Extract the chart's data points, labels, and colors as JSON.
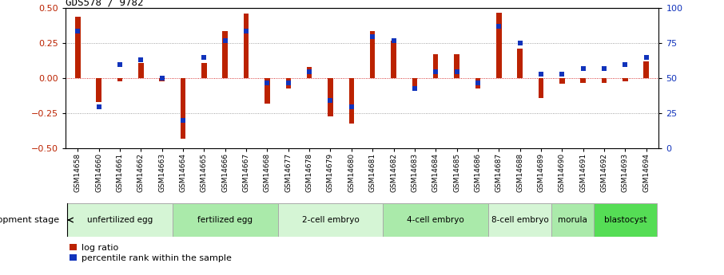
{
  "title": "GDS578 / 9782",
  "samples": [
    "GSM14658",
    "GSM14660",
    "GSM14661",
    "GSM14662",
    "GSM14663",
    "GSM14664",
    "GSM14665",
    "GSM14666",
    "GSM14667",
    "GSM14668",
    "GSM14677",
    "GSM14678",
    "GSM14679",
    "GSM14680",
    "GSM14681",
    "GSM14682",
    "GSM14683",
    "GSM14684",
    "GSM14685",
    "GSM14686",
    "GSM14687",
    "GSM14688",
    "GSM14689",
    "GSM14690",
    "GSM14691",
    "GSM14692",
    "GSM14693",
    "GSM14694"
  ],
  "log_ratio": [
    0.44,
    -0.17,
    -0.02,
    0.11,
    -0.02,
    -0.43,
    0.11,
    0.34,
    0.46,
    -0.18,
    -0.07,
    0.08,
    -0.27,
    -0.32,
    0.34,
    0.27,
    -0.08,
    0.17,
    0.17,
    -0.07,
    0.47,
    0.21,
    -0.14,
    -0.04,
    -0.03,
    -0.03,
    -0.02,
    0.12
  ],
  "percentile": [
    84,
    30,
    60,
    63,
    50,
    20,
    65,
    77,
    84,
    47,
    47,
    55,
    34,
    30,
    80,
    77,
    43,
    55,
    55,
    47,
    87,
    75,
    53,
    53,
    57,
    57,
    60,
    65
  ],
  "stages": [
    {
      "label": "unfertilized egg",
      "start": 0,
      "end": 5,
      "color": "#d5f5d5"
    },
    {
      "label": "fertilized egg",
      "start": 5,
      "end": 10,
      "color": "#aaeaaa"
    },
    {
      "label": "2-cell embryo",
      "start": 10,
      "end": 15,
      "color": "#d5f5d5"
    },
    {
      "label": "4-cell embryo",
      "start": 15,
      "end": 20,
      "color": "#aaeaaa"
    },
    {
      "label": "8-cell embryo",
      "start": 20,
      "end": 23,
      "color": "#d5f5d5"
    },
    {
      "label": "morula",
      "start": 23,
      "end": 25,
      "color": "#aaeaaa"
    },
    {
      "label": "blastocyst",
      "start": 25,
      "end": 28,
      "color": "#55dd55"
    }
  ],
  "bar_color": "#bb2200",
  "dot_color": "#1133bb",
  "ylim": [
    -0.5,
    0.5
  ],
  "y2lim": [
    0,
    100
  ],
  "yticks": [
    -0.5,
    -0.25,
    0.0,
    0.25,
    0.5
  ],
  "y2ticks": [
    0,
    25,
    50,
    75,
    100
  ],
  "hline_vals": [
    -0.25,
    0.0,
    0.25
  ],
  "bar_width": 0.25
}
